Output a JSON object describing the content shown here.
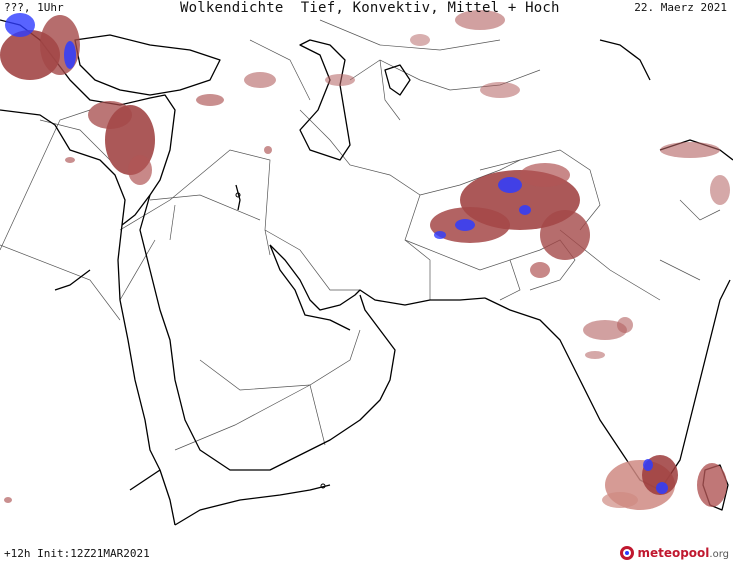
{
  "header": {
    "left": "???, 1Uhr",
    "title": "Wolkendichte  Tief, Konvektiv, Mittel + Hoch",
    "date": "22. Maerz 2021"
  },
  "footer": {
    "run_info": "+12h Init:12Z21MAR2021"
  },
  "logo": {
    "brand_primary": "meteo",
    "brand_secondary": "pool",
    "brand_suffix": ".org",
    "accent_color": "#c0182f"
  },
  "legend_colors": {
    "cloud_dense": "#9c3b3b",
    "cloud_light": "#cf8a82",
    "convective": "#2e3cff"
  },
  "icons": [
    "meteopool-logo-icon"
  ]
}
